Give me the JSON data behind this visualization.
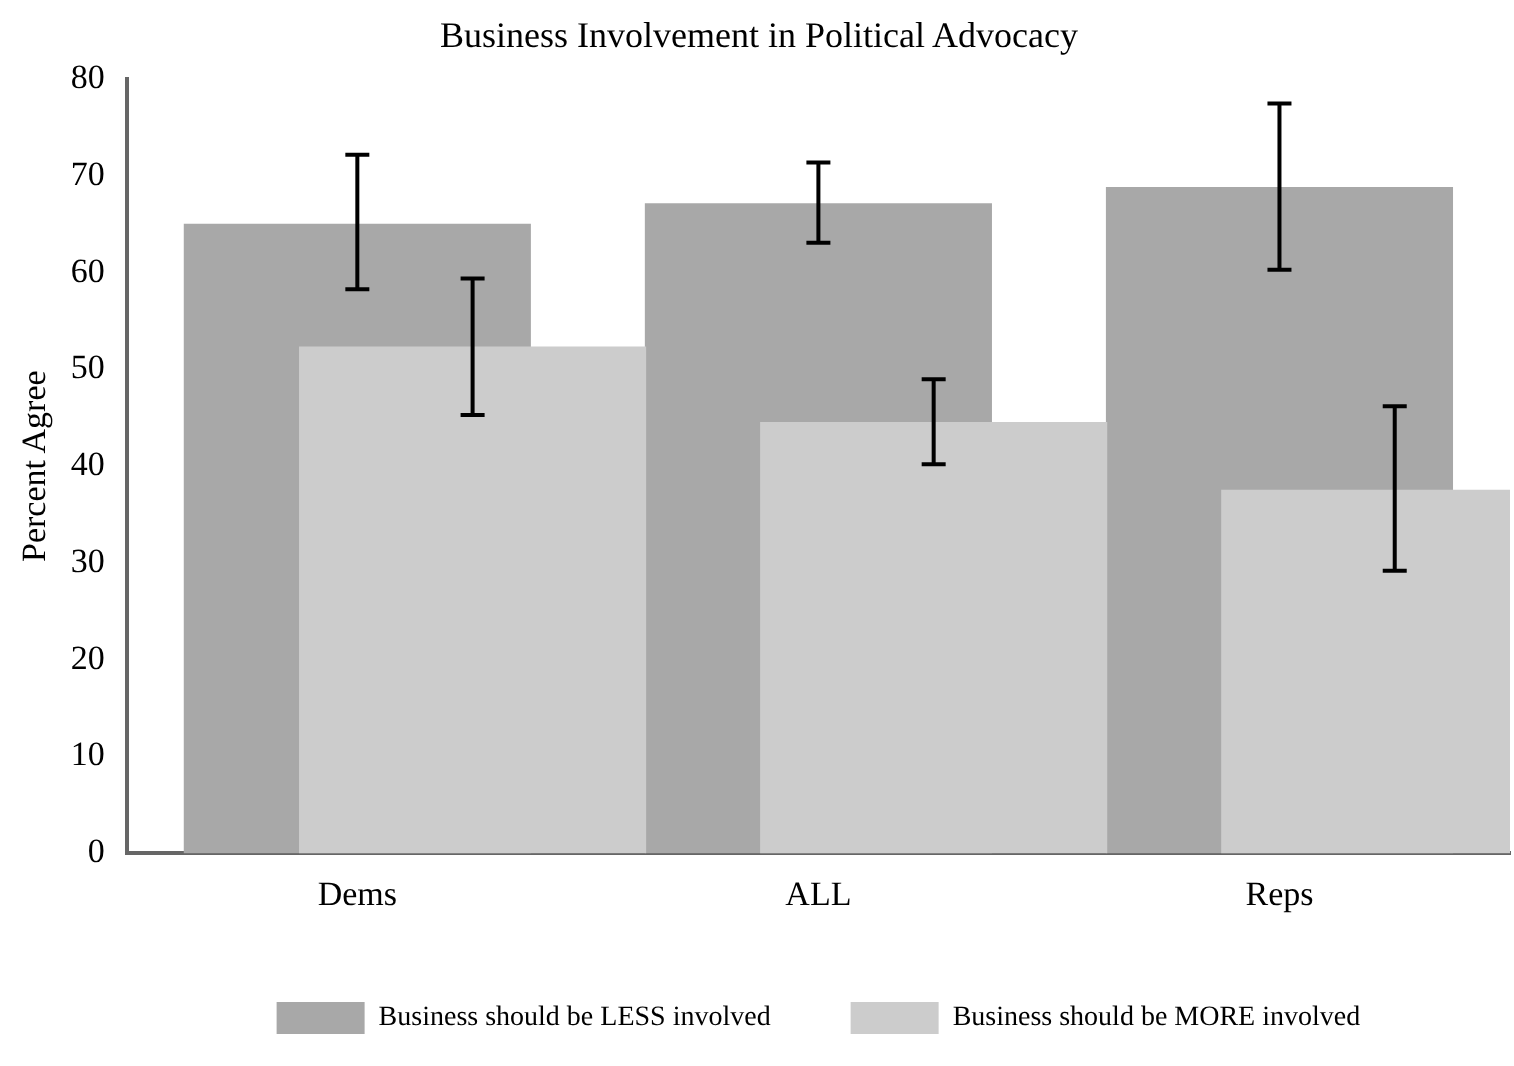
{
  "chart_data": {
    "type": "bar",
    "title": "Business Involvement in Political Advocacy",
    "ylabel": "Percent Agree",
    "categories": [
      "Dems",
      "ALL",
      "Reps"
    ],
    "series": [
      {
        "name": "Business should be LESS involved",
        "color": "#a8a8a8",
        "values": [
          65,
          67.1,
          68.8
        ],
        "errors": [
          [
            58.3,
            72.2
          ],
          [
            63.1,
            71.4
          ],
          [
            60.3,
            77.5
          ]
        ]
      },
      {
        "name": "Business should be MORE involved",
        "color": "#cccccc",
        "values": [
          52.3,
          44.5,
          37.5
        ],
        "errors": [
          [
            45.3,
            59.4
          ],
          [
            40.2,
            49.0
          ],
          [
            29.2,
            46.2
          ]
        ]
      }
    ],
    "ylim": [
      0,
      80
    ],
    "yticks": [
      0,
      10,
      20,
      30,
      40,
      50,
      60,
      70,
      80
    ],
    "legend": "bottom",
    "grid": false
  }
}
